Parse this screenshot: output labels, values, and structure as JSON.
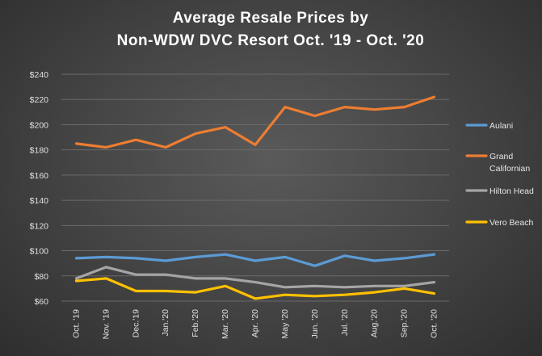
{
  "chart_data": {
    "type": "line",
    "title_lines": [
      "Average Resale Prices by",
      "Non-WDW  DVC Resort Oct. '19 - Oct. '20"
    ],
    "xlabel": "",
    "ylabel": "",
    "categories": [
      "Oct. '19",
      "Nov. '19",
      "Dec.'19",
      "Jan.'20",
      "Feb.'20",
      "Mar. '20",
      "Apr. '20",
      "May '20",
      "Jun. '20",
      "Jul. '20",
      "Aug.'20",
      "Sep.'20",
      "Oct. '20"
    ],
    "ylim": [
      60,
      240
    ],
    "yticks": [
      60,
      80,
      100,
      120,
      140,
      160,
      180,
      200,
      220,
      240
    ],
    "ytick_labels": [
      "$60",
      "$80",
      "$100",
      "$120",
      "$140",
      "$160",
      "$180",
      "$200",
      "$220",
      "$240"
    ],
    "grid": true,
    "legend_position": "right",
    "series": [
      {
        "name": "Aulani",
        "legend_lines": [
          "Aulani"
        ],
        "color": "#5b9bd5",
        "values": [
          94,
          95,
          94,
          92,
          95,
          97,
          92,
          95,
          88,
          96,
          92,
          94,
          97
        ]
      },
      {
        "name": "Grand Californian",
        "legend_lines": [
          "Grand",
          "Californian"
        ],
        "color": "#ed7d31",
        "values": [
          185,
          182,
          188,
          182,
          193,
          198,
          184,
          214,
          207,
          214,
          212,
          214,
          222
        ]
      },
      {
        "name": "Hilton Head",
        "legend_lines": [
          "Hilton Head"
        ],
        "color": "#a5a5a5",
        "values": [
          78,
          87,
          81,
          81,
          78,
          78,
          75,
          71,
          72,
          71,
          72,
          72,
          75
        ]
      },
      {
        "name": "Vero Beach",
        "legend_lines": [
          "Vero Beach"
        ],
        "color": "#ffc000",
        "values": [
          76,
          78,
          68,
          68,
          67,
          72,
          62,
          65,
          64,
          65,
          67,
          70,
          66
        ]
      }
    ]
  }
}
